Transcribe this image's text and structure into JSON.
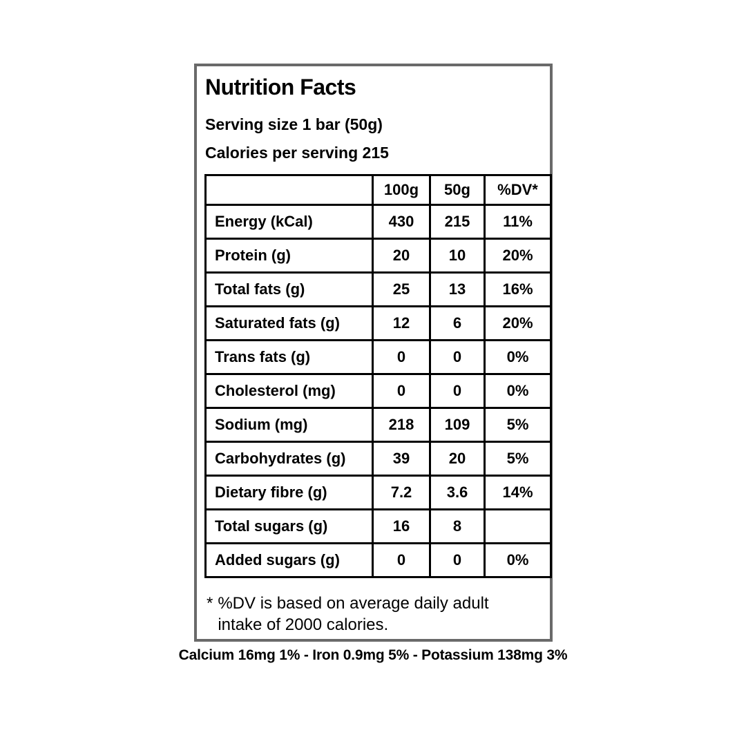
{
  "label": {
    "title": "Nutrition Facts",
    "serving_size_line": "Serving size 1 bar (50g)",
    "calories_line": "Calories per serving 215",
    "table": {
      "columns": [
        "",
        "100g",
        "50g",
        "%DV*"
      ],
      "rows": [
        {
          "name": "Energy (kCal)",
          "per100g": "430",
          "per50g": "215",
          "dv": "11%"
        },
        {
          "name": "Protein (g)",
          "per100g": "20",
          "per50g": "10",
          "dv": "20%"
        },
        {
          "name": "Total fats (g)",
          "per100g": "25",
          "per50g": "13",
          "dv": "16%"
        },
        {
          "name": "Saturated fats (g)",
          "per100g": "12",
          "per50g": "6",
          "dv": "20%"
        },
        {
          "name": "Trans fats (g)",
          "per100g": "0",
          "per50g": "0",
          "dv": "0%"
        },
        {
          "name": "Cholesterol (mg)",
          "per100g": "0",
          "per50g": "0",
          "dv": "0%"
        },
        {
          "name": "Sodium (mg)",
          "per100g": "218",
          "per50g": "109",
          "dv": "5%"
        },
        {
          "name": "Carbohydrates (g)",
          "per100g": "39",
          "per50g": "20",
          "dv": "5%"
        },
        {
          "name": "Dietary fibre (g)",
          "per100g": "7.2",
          "per50g": "3.6",
          "dv": "14%"
        },
        {
          "name": "Total sugars (g)",
          "per100g": "16",
          "per50g": "8",
          "dv": ""
        },
        {
          "name": "Added sugars (g)",
          "per100g": "0",
          "per50g": "0",
          "dv": "0%"
        }
      ]
    },
    "footnote": {
      "marker": "*",
      "line1": "%DV is based on average daily adult",
      "line2": "intake of 2000 calories."
    },
    "minerals_line": "Calcium 16mg 1% - Iron 0.9mg 5% - Potassium 138mg 3%"
  },
  "colors": {
    "outer_border": "#6a6a6a",
    "table_border": "#000000",
    "text": "#000000",
    "background": "#ffffff"
  }
}
